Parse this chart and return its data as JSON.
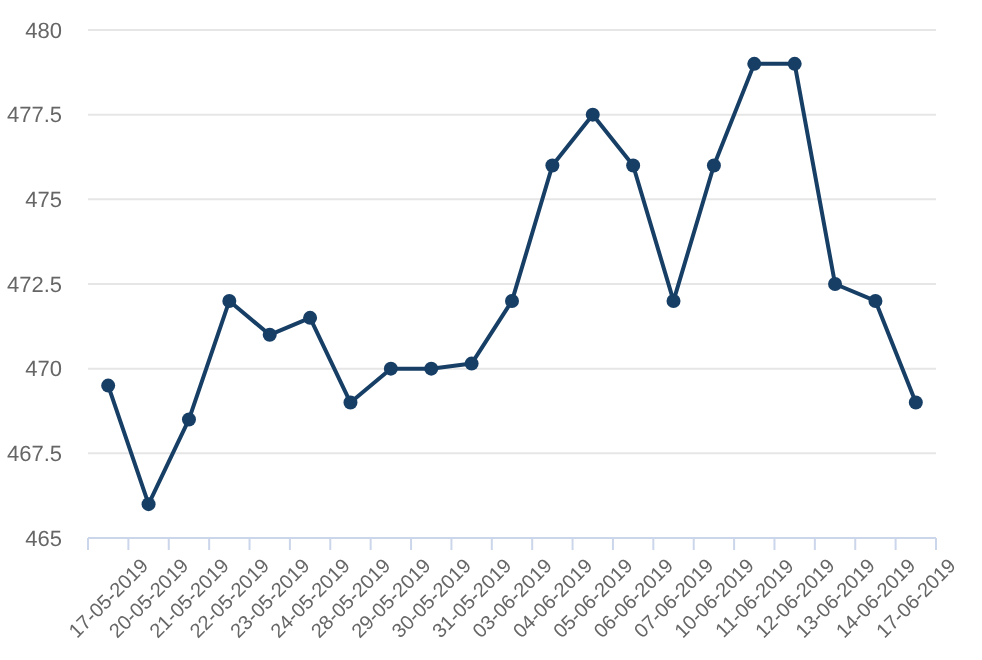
{
  "chart_data": {
    "type": "line",
    "categories": [
      "17-05-2019",
      "20-05-2019",
      "21-05-2019",
      "22-05-2019",
      "23-05-2019",
      "24-05-2019",
      "28-05-2019",
      "29-05-2019",
      "30-05-2019",
      "31-05-2019",
      "03-06-2019",
      "04-06-2019",
      "05-06-2019",
      "06-06-2019",
      "07-06-2019",
      "10-06-2019",
      "11-06-2019",
      "12-06-2019",
      "13-06-2019",
      "14-06-2019",
      "17-06-2019"
    ],
    "series": [
      {
        "color": "#173f66",
        "values": [
          469.5,
          466,
          468.5,
          472,
          471,
          471.5,
          469,
          470,
          470,
          470.15,
          472,
          476,
          477.5,
          476,
          472,
          476,
          479,
          479,
          472.5,
          472,
          469
        ]
      }
    ],
    "ylim": [
      465,
      480
    ],
    "yticks": [
      465,
      467.5,
      470,
      472.5,
      475,
      477.5,
      480
    ],
    "grid": "y",
    "marker": "circle"
  }
}
